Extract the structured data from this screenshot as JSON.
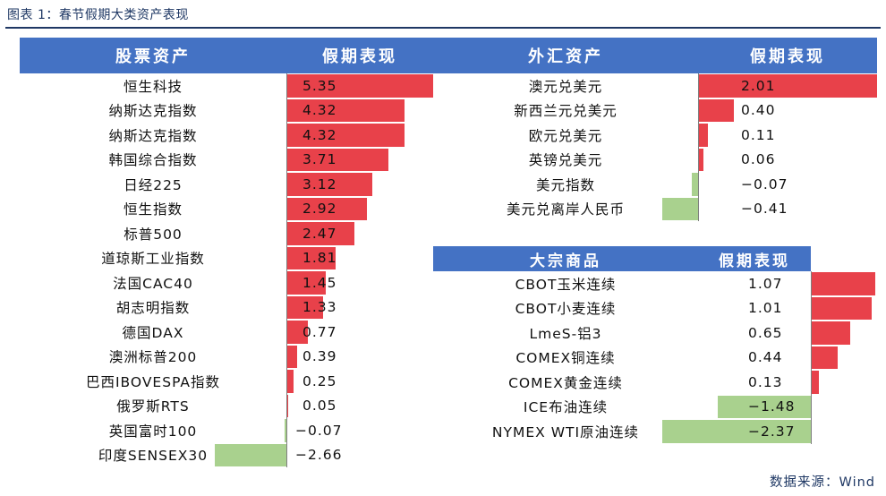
{
  "caption": "图表 1：春节假期大类资产表现",
  "source": "数据来源：Wind",
  "headers": {
    "stocks": "股票资产",
    "stocks_perf": "假期表现",
    "fx": "外汇资产",
    "fx_perf": "假期表现",
    "commodities": "大宗商品",
    "commodities_perf": "假期表现"
  },
  "colors": {
    "header": "#4472c4",
    "positive": "#e8414a",
    "negative": "#a9d18e"
  },
  "stocks": [
    {
      "name": "恒生科技",
      "value": 5.35,
      "label": "5.35"
    },
    {
      "name": "纳斯达克指数",
      "value": 4.32,
      "label": "4.32"
    },
    {
      "name": "纳斯达克指数",
      "value": 4.32,
      "label": "4.32"
    },
    {
      "name": "韩国综合指数",
      "value": 3.71,
      "label": "3.71"
    },
    {
      "name": "日经225",
      "value": 3.12,
      "label": "3.12"
    },
    {
      "name": "恒生指数",
      "value": 2.92,
      "label": "2.92"
    },
    {
      "name": "标普500",
      "value": 2.47,
      "label": "2.47"
    },
    {
      "name": "道琼斯工业指数",
      "value": 1.81,
      "label": "1.81"
    },
    {
      "name": "法国CAC40",
      "value": 1.45,
      "label": "1.45"
    },
    {
      "name": "胡志明指数",
      "value": 1.33,
      "label": "1.33"
    },
    {
      "name": "德国DAX",
      "value": 0.77,
      "label": "0.77"
    },
    {
      "name": "澳洲标普200",
      "value": 0.39,
      "label": "0.39"
    },
    {
      "name": "巴西IBOVESPA指数",
      "value": 0.25,
      "label": "0.25"
    },
    {
      "name": "俄罗斯RTS",
      "value": 0.05,
      "label": "0.05"
    },
    {
      "name": "英国富时100",
      "value": -0.07,
      "label": "-0.07"
    },
    {
      "name": "印度SENSEX30",
      "value": -2.66,
      "label": "-2.66"
    }
  ],
  "fx": [
    {
      "name": "澳元兑美元",
      "value": 2.01,
      "label": "2.01"
    },
    {
      "name": "新西兰元兑美元",
      "value": 0.4,
      "label": "0.40"
    },
    {
      "name": "欧元兑美元",
      "value": 0.11,
      "label": "0.11"
    },
    {
      "name": "英镑兑美元",
      "value": 0.06,
      "label": "0.06"
    },
    {
      "name": "美元指数",
      "value": -0.07,
      "label": "-0.07"
    },
    {
      "name": "美元兑离岸人民币",
      "value": -0.41,
      "label": "-0.41"
    }
  ],
  "commodities": [
    {
      "name": "CBOT玉米连续",
      "value": 1.07,
      "label": "1.07"
    },
    {
      "name": "CBOT小麦连续",
      "value": 1.01,
      "label": "1.01"
    },
    {
      "name": "LmeS-铝3",
      "value": 0.65,
      "label": "0.65"
    },
    {
      "name": "COMEX铜连续",
      "value": 0.44,
      "label": "0.44"
    },
    {
      "name": "COMEX黄金连续",
      "value": 0.13,
      "label": "0.13"
    },
    {
      "name": "ICE布油连续",
      "value": -1.48,
      "label": "-1.48"
    },
    {
      "name": "NYMEX WTI原油连续",
      "value": -2.37,
      "label": "-2.37"
    }
  ]
}
